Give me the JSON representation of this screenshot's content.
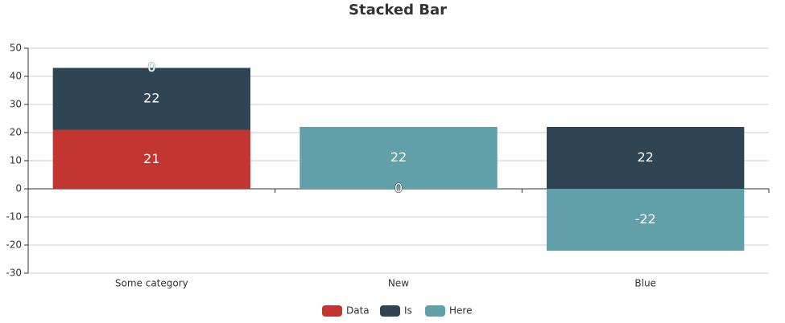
{
  "chart_data": {
    "type": "bar",
    "stacked": true,
    "title": "Stacked Bar",
    "categories": [
      "Some category",
      "New",
      "Blue"
    ],
    "series": [
      {
        "name": "Data",
        "color": "#c23531",
        "values": [
          21,
          0,
          null
        ]
      },
      {
        "name": "Is",
        "color": "#2f4554",
        "values": [
          22,
          0,
          22
        ]
      },
      {
        "name": "Here",
        "color": "#61a0a8",
        "values": [
          0,
          22,
          -22
        ]
      }
    ],
    "ylim": [
      -30,
      50
    ],
    "yticks": [
      -30,
      -20,
      -10,
      0,
      10,
      20,
      30,
      40,
      50
    ],
    "grid": true,
    "legend": "bottom"
  }
}
